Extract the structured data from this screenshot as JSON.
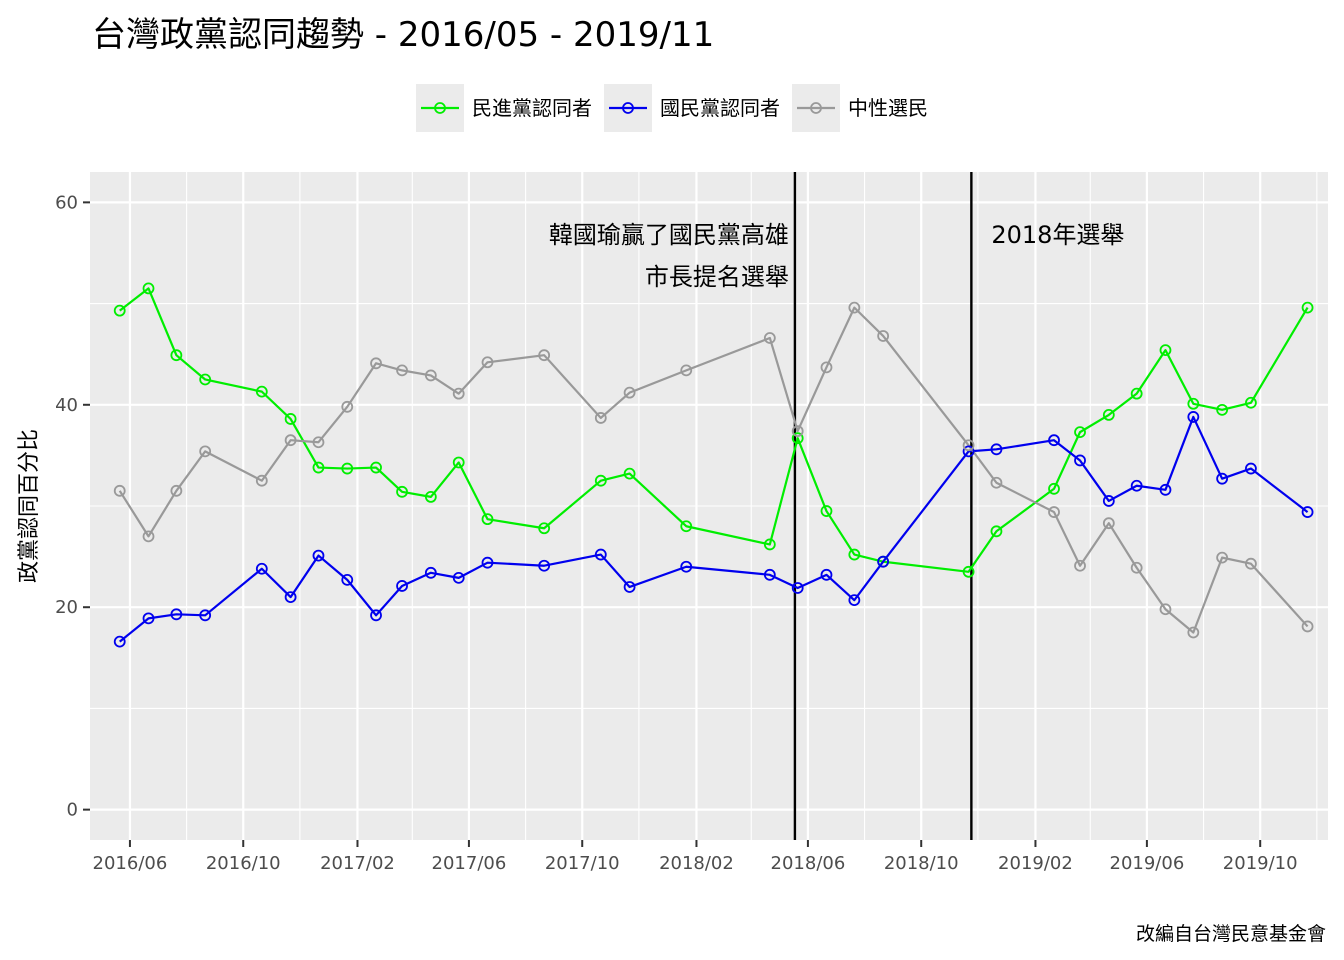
{
  "chart_data": {
    "type": "line",
    "title": "台灣政黨認同趨勢 - 2016/05 - 2019/11",
    "xlabel": "",
    "ylabel": "政黨認同百分比",
    "caption": "改編自台灣民意基金會",
    "xlim": [
      "2016-04-19",
      "2019-12-13"
    ],
    "ylim": [
      -3,
      63
    ],
    "y_ticks": [
      0,
      20,
      40,
      60
    ],
    "x_ticks": [
      {
        "date": "2016-06-01",
        "label": "2016/06"
      },
      {
        "date": "2016-10-01",
        "label": "2016/10"
      },
      {
        "date": "2017-02-01",
        "label": "2017/02"
      },
      {
        "date": "2017-06-01",
        "label": "2017/06"
      },
      {
        "date": "2017-10-01",
        "label": "2017/10"
      },
      {
        "date": "2018-02-01",
        "label": "2018/02"
      },
      {
        "date": "2018-06-01",
        "label": "2018/06"
      },
      {
        "date": "2018-10-01",
        "label": "2018/10"
      },
      {
        "date": "2019-02-01",
        "label": "2019/02"
      },
      {
        "date": "2019-06-01",
        "label": "2019/06"
      },
      {
        "date": "2019-10-01",
        "label": "2019/10"
      }
    ],
    "x_minor_ticks": [
      "2016-04-01",
      "2016-08-01",
      "2016-12-01",
      "2017-04-01",
      "2017-08-01",
      "2017-12-01",
      "2018-04-01",
      "2018-08-01",
      "2018-12-01",
      "2019-04-01",
      "2019-08-01",
      "2019-12-01"
    ],
    "grid": true,
    "legend_position": "top",
    "x": [
      "2016-05-21",
      "2016-06-21",
      "2016-07-21",
      "2016-08-21",
      "2016-10-21",
      "2016-11-21",
      "2016-12-21",
      "2017-01-21",
      "2017-02-21",
      "2017-03-21",
      "2017-04-21",
      "2017-05-21",
      "2017-06-21",
      "2017-08-21",
      "2017-10-21",
      "2017-11-21",
      "2018-01-21",
      "2018-04-21",
      "2018-05-21",
      "2018-06-21",
      "2018-07-21",
      "2018-08-21",
      "2018-11-21",
      "2018-12-21",
      "2019-02-21",
      "2019-03-21",
      "2019-04-21",
      "2019-05-21",
      "2019-06-21",
      "2019-07-21",
      "2019-08-21",
      "2019-09-21",
      "2019-11-21"
    ],
    "series": [
      {
        "name": "民進黨認同者",
        "color": "#00ee00",
        "x": [
          "2016-05-21",
          "2016-06-21",
          "2016-07-21",
          "2016-08-21",
          "2016-10-21",
          "2016-11-21",
          "2016-12-21",
          "2017-01-21",
          "2017-02-21",
          "2017-03-21",
          "2017-04-21",
          "2017-05-21",
          "2017-06-21",
          "2017-08-21",
          "2017-10-21",
          "2017-11-21",
          "2018-01-21",
          "2018-04-21",
          "2018-05-21",
          "2018-06-21",
          "2018-07-21",
          "2018-08-21",
          "2018-11-21",
          "2018-12-21",
          "2019-02-21",
          "2019-03-21",
          "2019-04-21",
          "2019-05-21",
          "2019-06-21",
          "2019-07-21",
          "2019-08-21",
          "2019-09-21",
          "2019-11-21"
        ],
        "values": [
          49.3,
          51.5,
          44.9,
          42.5,
          41.3,
          38.6,
          33.8,
          33.7,
          33.8,
          31.4,
          30.9,
          34.3,
          28.7,
          27.8,
          32.5,
          33.2,
          28.0,
          26.2,
          36.7,
          29.5,
          25.2,
          24.5,
          23.5,
          27.5,
          31.7,
          37.3,
          39.0,
          41.1,
          45.4,
          40.1,
          39.5,
          40.2,
          49.6
        ]
      },
      {
        "name": "國民黨認同者",
        "color": "#0000ee",
        "x": [
          "2016-05-21",
          "2016-06-21",
          "2016-07-21",
          "2016-08-21",
          "2016-10-21",
          "2016-11-21",
          "2016-12-21",
          "2017-01-21",
          "2017-02-21",
          "2017-03-21",
          "2017-04-21",
          "2017-05-21",
          "2017-06-21",
          "2017-08-21",
          "2017-10-21",
          "2017-11-21",
          "2018-01-21",
          "2018-04-21",
          "2018-05-21",
          "2018-06-21",
          "2018-07-21",
          "2018-08-21",
          "2018-11-21",
          "2018-12-21",
          "2019-02-21",
          "2019-03-21",
          "2019-04-21",
          "2019-05-21",
          "2019-06-21",
          "2019-07-21",
          "2019-08-21",
          "2019-09-21",
          "2019-11-21"
        ],
        "values": [
          16.6,
          18.9,
          19.3,
          19.2,
          23.8,
          21.0,
          25.1,
          22.7,
          19.2,
          22.1,
          23.4,
          22.9,
          24.4,
          24.1,
          25.2,
          22.0,
          24.0,
          23.2,
          21.9,
          23.2,
          20.7,
          24.5,
          35.4,
          35.6,
          36.5,
          34.5,
          30.5,
          32.0,
          31.6,
          38.8,
          32.7,
          33.7,
          29.4
        ]
      },
      {
        "name": "中性選民",
        "color": "#999999",
        "x": [
          "2016-05-21",
          "2016-06-21",
          "2016-07-21",
          "2016-08-21",
          "2016-10-21",
          "2016-11-21",
          "2016-12-21",
          "2017-01-21",
          "2017-02-21",
          "2017-03-21",
          "2017-04-21",
          "2017-05-21",
          "2017-06-21",
          "2017-08-21",
          "2017-10-21",
          "2017-11-21",
          "2018-01-21",
          "2018-04-21",
          "2018-05-21",
          "2018-06-21",
          "2018-07-21",
          "2018-08-21",
          "2018-11-21",
          "2018-12-21",
          "2019-02-21",
          "2019-03-21",
          "2019-04-21",
          "2019-05-21",
          "2019-06-21",
          "2019-07-21",
          "2019-08-21",
          "2019-09-21",
          "2019-11-21"
        ],
        "values": [
          31.5,
          27.0,
          31.5,
          35.4,
          32.5,
          36.5,
          36.3,
          39.8,
          44.1,
          43.4,
          42.9,
          41.1,
          44.2,
          44.9,
          38.7,
          41.2,
          43.4,
          46.6,
          37.4,
          43.7,
          49.6,
          46.8,
          36.0,
          32.3,
          29.4,
          24.1,
          28.3,
          23.9,
          19.8,
          17.5,
          24.9,
          24.3,
          18.1
        ]
      }
    ],
    "annotations": [
      {
        "date": "2018-05-18",
        "lines": [
          "韓國瑜贏了國民黨高雄",
          "市長提名選舉"
        ],
        "align": "right"
      },
      {
        "date": "2018-11-24",
        "lines": [
          "2018年選舉"
        ],
        "align": "left"
      }
    ]
  }
}
